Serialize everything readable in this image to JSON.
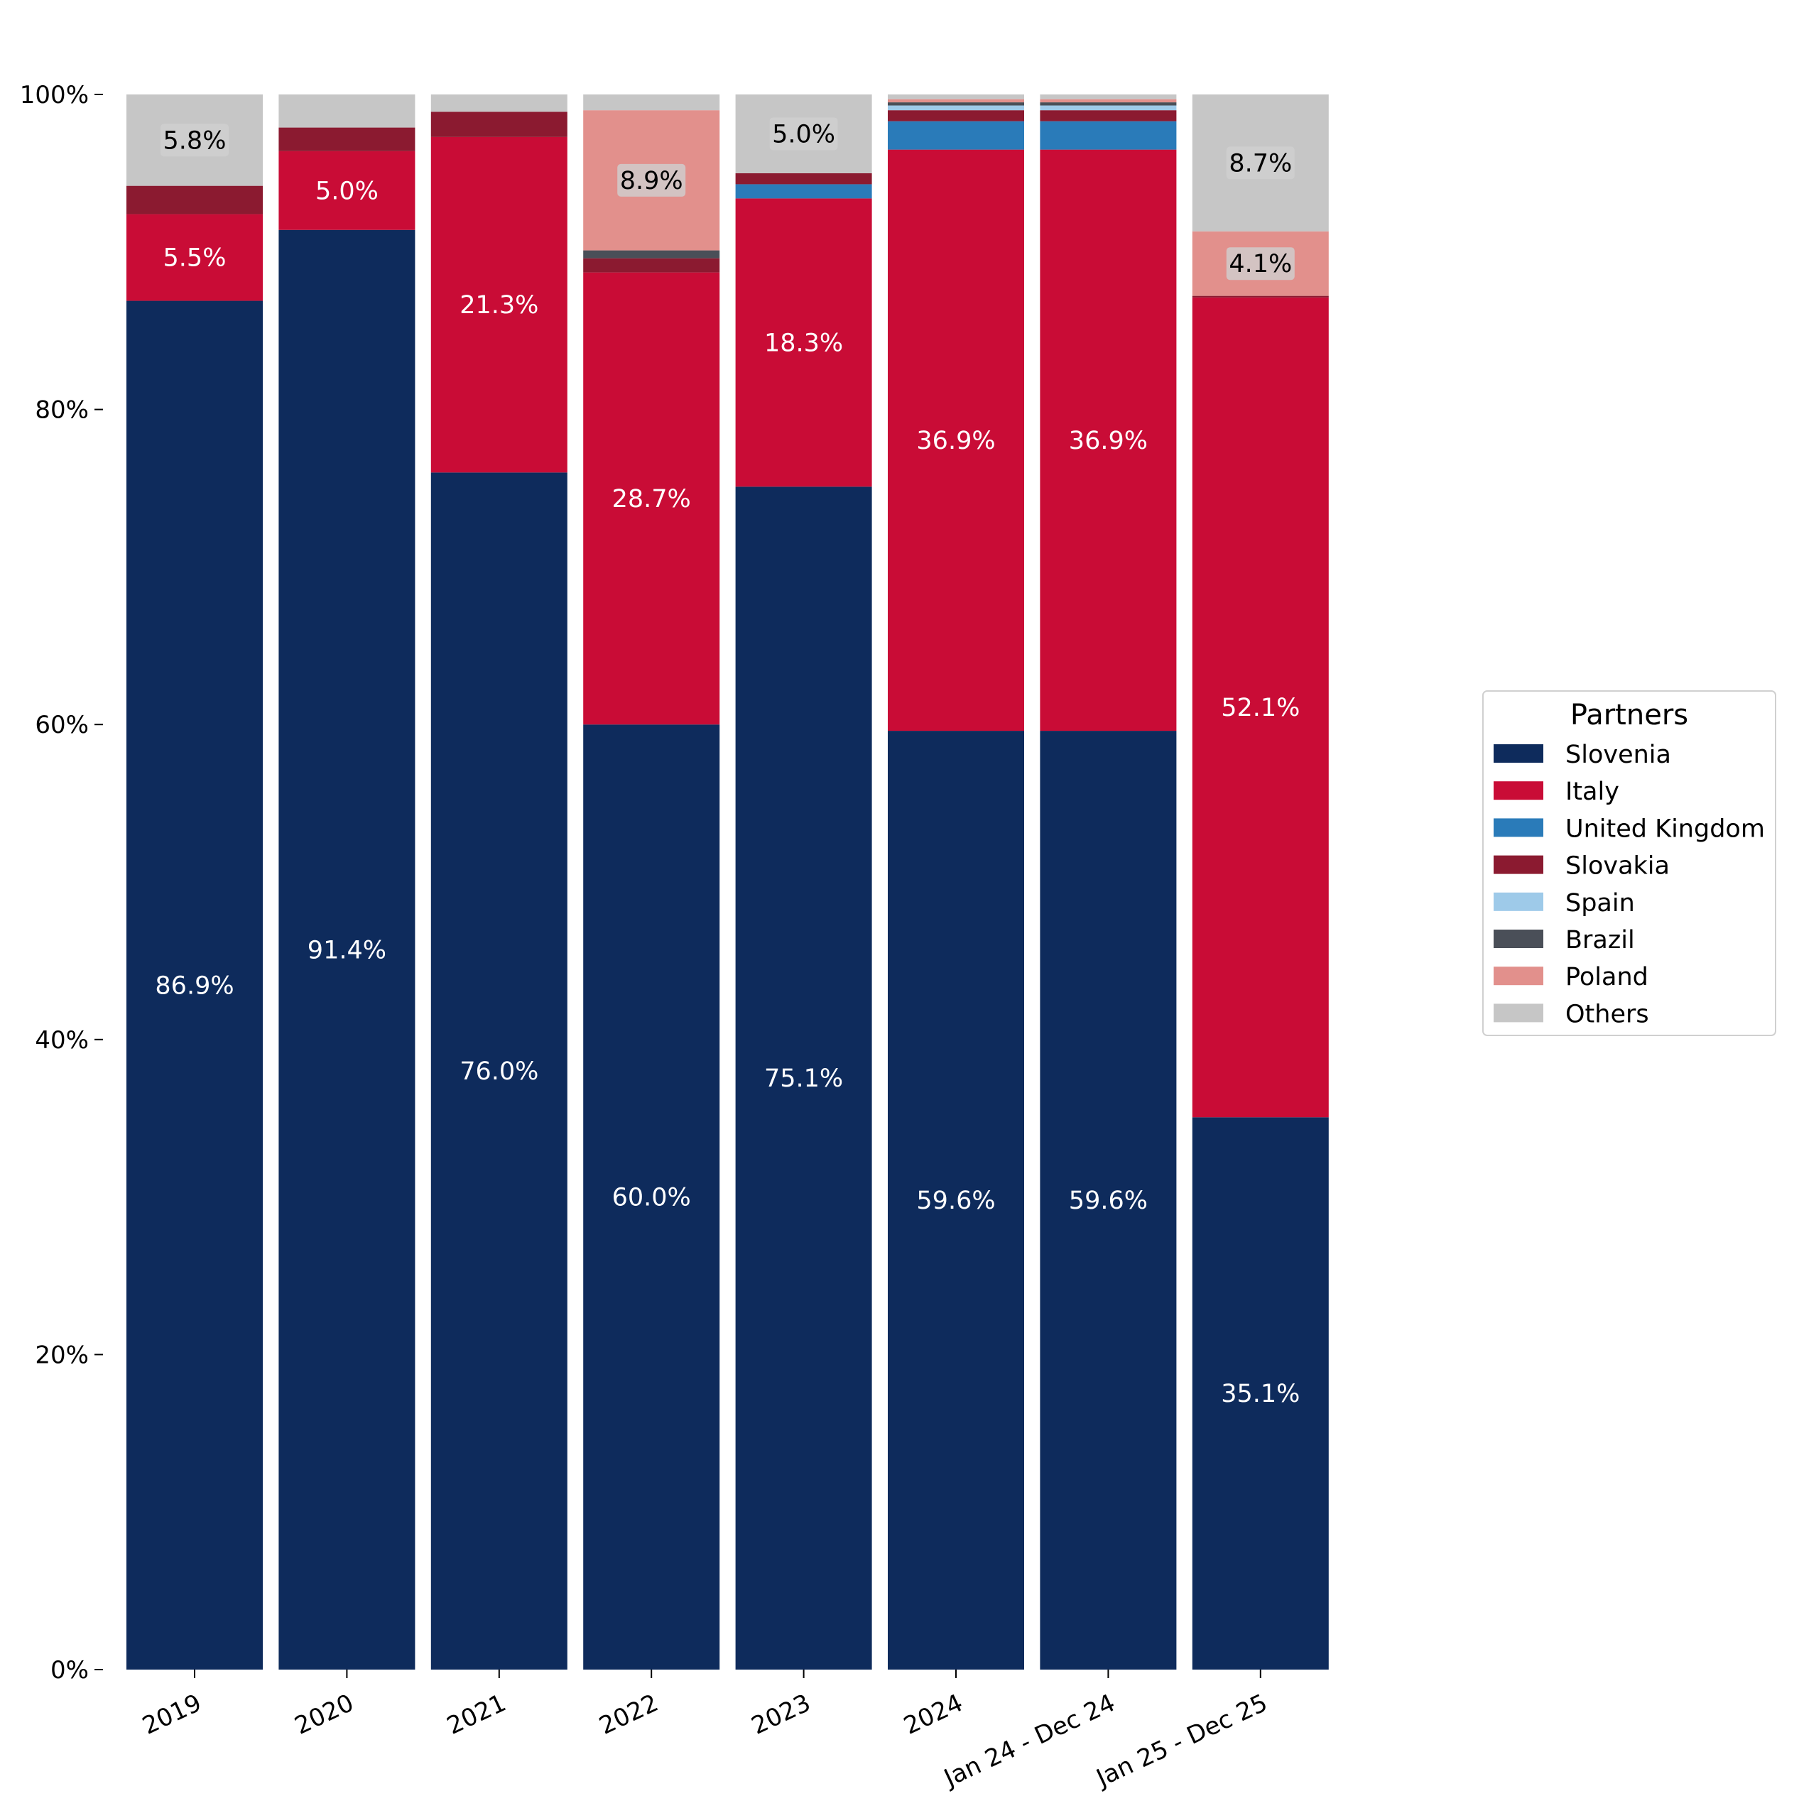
{
  "chart_data": {
    "type": "bar",
    "stacked": true,
    "normalized": true,
    "categories": [
      "2019",
      "2020",
      "2021",
      "2022",
      "2023",
      "2024",
      "Jan 24 - Dec 24",
      "Jan 25 - Dec 25"
    ],
    "ylim": [
      0,
      100
    ],
    "yticks": [
      0,
      20,
      40,
      60,
      80,
      100
    ],
    "ytick_labels": [
      "0%",
      "20%",
      "40%",
      "60%",
      "80%",
      "100%"
    ],
    "legend": {
      "title": "Partners",
      "position": "right"
    },
    "series": [
      {
        "name": "Slovenia",
        "color": "#0e2b5c",
        "label_color": "#ffffff",
        "values": [
          86.9,
          91.4,
          76.0,
          60.0,
          75.1,
          59.6,
          59.6,
          35.1
        ]
      },
      {
        "name": "Italy",
        "color": "#c90c36",
        "label_color": "#ffffff",
        "values": [
          5.5,
          5.0,
          21.3,
          28.7,
          18.3,
          36.9,
          36.9,
          52.1
        ]
      },
      {
        "name": "United Kingdom",
        "color": "#2a7bb9",
        "label_color": "#ffffff",
        "values": [
          0,
          0,
          0,
          0,
          0.9,
          1.8,
          1.8,
          0
        ]
      },
      {
        "name": "Slovakia",
        "color": "#8b1a30",
        "label_color": "#ffffff",
        "values": [
          1.8,
          1.5,
          1.6,
          0.9,
          0.7,
          0.7,
          0.7,
          0.1
        ]
      },
      {
        "name": "Spain",
        "color": "#9ecae9",
        "label_color": "#000000",
        "values": [
          0,
          0,
          0,
          0,
          0,
          0.3,
          0.3,
          0
        ]
      },
      {
        "name": "Brazil",
        "color": "#4a4f58",
        "label_color": "#ffffff",
        "values": [
          0,
          0,
          0,
          0.5,
          0,
          0.2,
          0.2,
          0
        ]
      },
      {
        "name": "Poland",
        "color": "#e2908c",
        "label_color": "#000000",
        "values": [
          0,
          0,
          0,
          8.9,
          0,
          0.2,
          0.2,
          4.1
        ]
      },
      {
        "name": "Others",
        "color": "#c6c6c6",
        "label_color": "#000000",
        "values": [
          5.8,
          2.1,
          1.1,
          1.0,
          5.0,
          0.3,
          0.3,
          8.7
        ]
      }
    ],
    "data_labels": [
      {
        "category": 0,
        "series": 0,
        "text": "86.9%"
      },
      {
        "category": 0,
        "series": 1,
        "text": "5.5%"
      },
      {
        "category": 0,
        "series": 7,
        "text": "5.8%",
        "boxed": true
      },
      {
        "category": 1,
        "series": 0,
        "text": "91.4%"
      },
      {
        "category": 1,
        "series": 1,
        "text": "5.0%"
      },
      {
        "category": 2,
        "series": 0,
        "text": "76.0%"
      },
      {
        "category": 2,
        "series": 1,
        "text": "21.3%"
      },
      {
        "category": 3,
        "series": 0,
        "text": "60.0%"
      },
      {
        "category": 3,
        "series": 1,
        "text": "28.7%"
      },
      {
        "category": 3,
        "series": 6,
        "text": "8.9%",
        "boxed": true
      },
      {
        "category": 4,
        "series": 0,
        "text": "75.1%"
      },
      {
        "category": 4,
        "series": 1,
        "text": "18.3%"
      },
      {
        "category": 4,
        "series": 7,
        "text": "5.0%",
        "boxed": true
      },
      {
        "category": 5,
        "series": 0,
        "text": "59.6%"
      },
      {
        "category": 5,
        "series": 1,
        "text": "36.9%"
      },
      {
        "category": 6,
        "series": 0,
        "text": "59.6%"
      },
      {
        "category": 6,
        "series": 1,
        "text": "36.9%"
      },
      {
        "category": 7,
        "series": 0,
        "text": "35.1%"
      },
      {
        "category": 7,
        "series": 1,
        "text": "52.1%"
      },
      {
        "category": 7,
        "series": 6,
        "text": "4.1%",
        "boxed": true
      },
      {
        "category": 7,
        "series": 7,
        "text": "8.7%",
        "boxed": true
      }
    ]
  }
}
